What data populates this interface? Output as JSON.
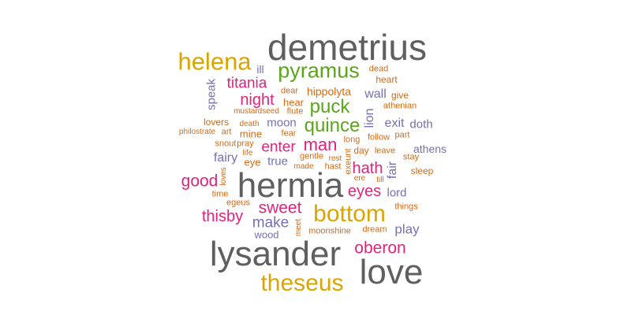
{
  "palette": {
    "gray": "#5f5f5f",
    "gold": "#dba500",
    "green": "#5aa61a",
    "pink": "#e0237d",
    "purple": "#7570b3",
    "orange": "#d86910"
  },
  "words": [
    {
      "text": "demetrius",
      "color": "gray"
    },
    {
      "text": "helena",
      "color": "gold"
    },
    {
      "text": "pyramus",
      "color": "green"
    },
    {
      "text": "ill",
      "color": "purple"
    },
    {
      "text": "dead",
      "color": "orange"
    },
    {
      "text": "heart",
      "color": "orange"
    },
    {
      "text": "titania",
      "color": "pink"
    },
    {
      "text": "speak",
      "color": "purple"
    },
    {
      "text": "night",
      "color": "pink"
    },
    {
      "text": "dear",
      "color": "orange"
    },
    {
      "text": "hippolyta",
      "color": "orange"
    },
    {
      "text": "wall",
      "color": "purple"
    },
    {
      "text": "give",
      "color": "orange"
    },
    {
      "text": "hear",
      "color": "orange"
    },
    {
      "text": "puck",
      "color": "green"
    },
    {
      "text": "athenian",
      "color": "orange"
    },
    {
      "text": "mustardseed",
      "color": "orange"
    },
    {
      "text": "flute",
      "color": "orange"
    },
    {
      "text": "lion",
      "color": "purple"
    },
    {
      "text": "lovers",
      "color": "orange"
    },
    {
      "text": "moon",
      "color": "purple"
    },
    {
      "text": "quince",
      "color": "green"
    },
    {
      "text": "exit",
      "color": "purple"
    },
    {
      "text": "doth",
      "color": "purple"
    },
    {
      "text": "philostrate",
      "color": "orange"
    },
    {
      "text": "art",
      "color": "orange"
    },
    {
      "text": "death",
      "color": "orange"
    },
    {
      "text": "mine",
      "color": "orange"
    },
    {
      "text": "fear",
      "color": "orange"
    },
    {
      "text": "long",
      "color": "orange"
    },
    {
      "text": "follow",
      "color": "orange"
    },
    {
      "text": "part",
      "color": "orange"
    },
    {
      "text": "snout",
      "color": "orange"
    },
    {
      "text": "pray",
      "color": "orange"
    },
    {
      "text": "enter",
      "color": "pink"
    },
    {
      "text": "man",
      "color": "pink"
    },
    {
      "text": "day",
      "color": "orange"
    },
    {
      "text": "leave",
      "color": "orange"
    },
    {
      "text": "athens",
      "color": "purple"
    },
    {
      "text": "life",
      "color": "orange"
    },
    {
      "text": "fairy",
      "color": "purple"
    },
    {
      "text": "eye",
      "color": "orange"
    },
    {
      "text": "true",
      "color": "purple"
    },
    {
      "text": "gentle",
      "color": "orange"
    },
    {
      "text": "rest",
      "color": "orange"
    },
    {
      "text": "exeunt",
      "color": "orange"
    },
    {
      "text": "stay",
      "color": "orange"
    },
    {
      "text": "made",
      "color": "orange"
    },
    {
      "text": "hast",
      "color": "orange"
    },
    {
      "text": "hath",
      "color": "pink"
    },
    {
      "text": "fair",
      "color": "purple"
    },
    {
      "text": "sleep",
      "color": "orange"
    },
    {
      "text": "loves",
      "color": "orange"
    },
    {
      "text": "ere",
      "color": "orange"
    },
    {
      "text": "till",
      "color": "orange"
    },
    {
      "text": "good",
      "color": "pink"
    },
    {
      "text": "hermia",
      "color": "gray"
    },
    {
      "text": "eyes",
      "color": "pink"
    },
    {
      "text": "lord",
      "color": "purple"
    },
    {
      "text": "time",
      "color": "orange"
    },
    {
      "text": "egeus",
      "color": "orange"
    },
    {
      "text": "sweet",
      "color": "pink"
    },
    {
      "text": "things",
      "color": "orange"
    },
    {
      "text": "thisby",
      "color": "pink"
    },
    {
      "text": "bottom",
      "color": "gold"
    },
    {
      "text": "make",
      "color": "purple"
    },
    {
      "text": "play",
      "color": "purple"
    },
    {
      "text": "meet",
      "color": "orange"
    },
    {
      "text": "moonshine",
      "color": "orange"
    },
    {
      "text": "dream",
      "color": "orange"
    },
    {
      "text": "wood",
      "color": "purple"
    },
    {
      "text": "oberon",
      "color": "pink"
    },
    {
      "text": "lysander",
      "color": "gray"
    },
    {
      "text": "love",
      "color": "gray"
    },
    {
      "text": "theseus",
      "color": "gold"
    }
  ]
}
